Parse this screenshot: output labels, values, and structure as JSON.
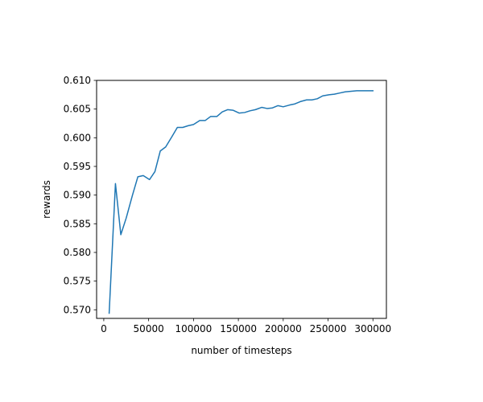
{
  "chart_data": {
    "type": "line",
    "title": "",
    "xlabel": "number of timesteps",
    "ylabel": "rewards",
    "xlim": [
      -8000,
      315000
    ],
    "ylim": [
      0.5685,
      0.61
    ],
    "grid": false,
    "xticks": [
      0,
      50000,
      100000,
      150000,
      200000,
      250000,
      300000
    ],
    "xtick_labels": [
      "0",
      "50000",
      "100000",
      "150000",
      "200000",
      "250000",
      "300000"
    ],
    "yticks": [
      0.57,
      0.575,
      0.58,
      0.585,
      0.59,
      0.595,
      0.6,
      0.605,
      0.61
    ],
    "ytick_labels": [
      "0.570",
      "0.575",
      "0.580",
      "0.585",
      "0.590",
      "0.595",
      "0.600",
      "0.605",
      "0.610"
    ],
    "series": [
      {
        "color": "#1f77b4",
        "x": [
          6000,
          13000,
          19000,
          25000,
          32000,
          38000,
          44000,
          51000,
          57000,
          63000,
          69000,
          76000,
          82000,
          88000,
          94000,
          100000,
          107000,
          113000,
          119000,
          126000,
          132000,
          138000,
          144000,
          151000,
          157000,
          163000,
          169000,
          176000,
          182000,
          188000,
          194000,
          200000,
          207000,
          213000,
          219000,
          226000,
          232000,
          238000,
          244000,
          251000,
          257000,
          263000,
          269000,
          276000,
          282000,
          288000,
          294000,
          300000
        ],
        "y": [
          0.5694,
          0.592,
          0.5831,
          0.586,
          0.59,
          0.5932,
          0.5934,
          0.5927,
          0.5941,
          0.5977,
          0.5984,
          0.6002,
          0.6018,
          0.6018,
          0.6021,
          0.6023,
          0.603,
          0.603,
          0.6037,
          0.6037,
          0.6045,
          0.6049,
          0.6048,
          0.6043,
          0.6044,
          0.6047,
          0.6049,
          0.6053,
          0.6051,
          0.6052,
          0.6056,
          0.6054,
          0.6057,
          0.6059,
          0.6063,
          0.6066,
          0.6066,
          0.6068,
          0.6073,
          0.6075,
          0.6076,
          0.6078,
          0.608,
          0.6081,
          0.6082,
          0.6082,
          0.6082,
          0.6082
        ]
      }
    ]
  }
}
